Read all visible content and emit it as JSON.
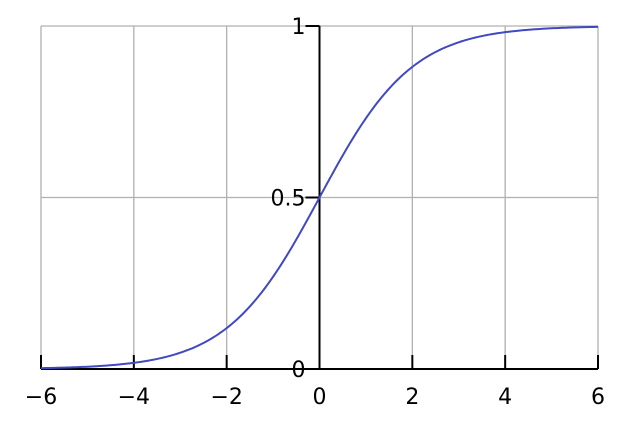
{
  "chart_data": {
    "type": "line",
    "title": "",
    "xlabel": "",
    "ylabel": "",
    "xlim": [
      -6,
      6
    ],
    "ylim": [
      0,
      1
    ],
    "grid": true,
    "x_ticks": [
      -6,
      -4,
      -2,
      0,
      2,
      4,
      6
    ],
    "x_tick_labels": [
      "−6",
      "−4",
      "−2",
      "0",
      "2",
      "4",
      "6"
    ],
    "y_ticks": [
      0,
      0.5,
      1
    ],
    "y_tick_labels": [
      "0",
      "0.5",
      "1"
    ],
    "colors": {
      "curve": "#4049c0",
      "grid": "#b0b0b0",
      "axis": "#000000"
    },
    "series": [
      {
        "x": [
          -6,
          -5.5,
          -5,
          -4.5,
          -4,
          -3.5,
          -3,
          -2.5,
          -2,
          -1.5,
          -1,
          -0.5,
          0,
          0.5,
          1,
          1.5,
          2,
          2.5,
          3,
          3.5,
          4,
          4.5,
          5,
          5.5,
          6
        ],
        "y": [
          0.0025,
          0.0041,
          0.0067,
          0.011,
          0.018,
          0.0293,
          0.0474,
          0.0759,
          0.1192,
          0.1824,
          0.2689,
          0.3775,
          0.5,
          0.6225,
          0.7311,
          0.8176,
          0.8808,
          0.9241,
          0.9526,
          0.9707,
          0.982,
          0.989,
          0.9933,
          0.9959,
          0.9975
        ]
      }
    ]
  }
}
